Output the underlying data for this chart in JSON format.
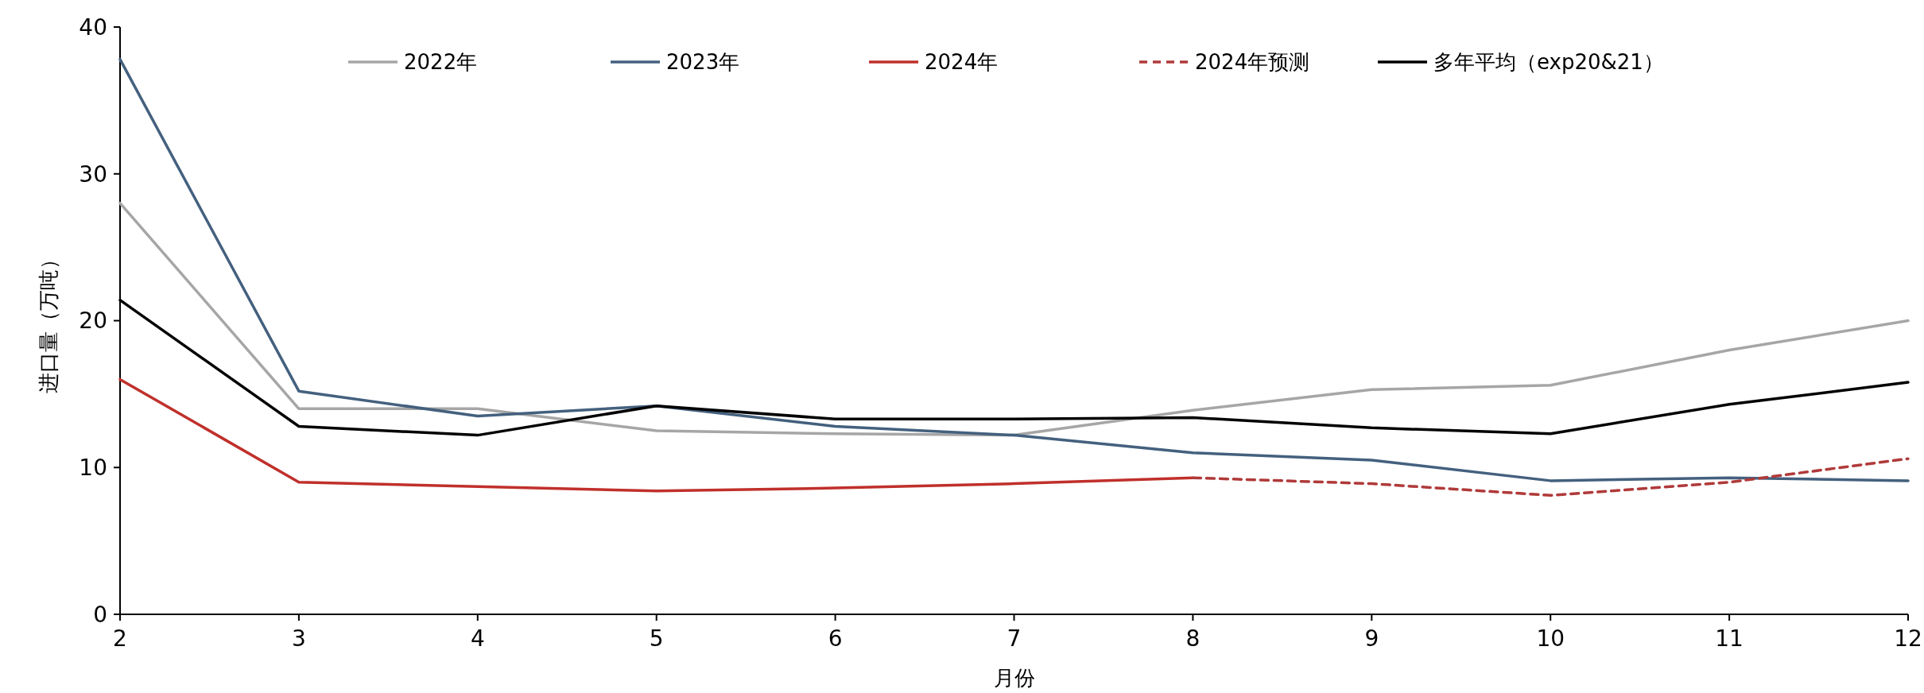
{
  "chart_data": {
    "type": "line",
    "xlabel": "月份",
    "ylabel": "进口量（万吨）",
    "x": [
      2,
      3,
      4,
      5,
      6,
      7,
      8,
      9,
      10,
      11,
      12
    ],
    "xlim": [
      2,
      12
    ],
    "xticks": [
      2,
      3,
      4,
      5,
      6,
      7,
      8,
      9,
      10,
      11,
      12
    ],
    "ylim": [
      0,
      40
    ],
    "yticks": [
      0,
      10,
      20,
      30,
      40
    ],
    "grid": false,
    "legend": "top",
    "marker": "none",
    "series": [
      {
        "name": "2022年",
        "color": "#a6a6a6",
        "line_style": "solid",
        "values": [
          28,
          14,
          14,
          12.5,
          12.3,
          12.2,
          13.9,
          15.3,
          15.6,
          18,
          20
        ]
      },
      {
        "name": "2023年",
        "color": "#44607e",
        "line_style": "solid",
        "values": [
          37.8,
          15.2,
          13.5,
          14.2,
          12.8,
          12.2,
          11,
          10.5,
          9.1,
          9.3,
          9.1
        ]
      },
      {
        "name": "2024年",
        "color": "#c0302b",
        "line_style": "solid",
        "values": [
          16,
          9,
          8.7,
          8.4,
          8.6,
          8.9,
          9.3,
          null,
          null,
          null,
          null
        ]
      },
      {
        "name": "2024年预测",
        "color": "#b03a3a",
        "line_style": "dashed",
        "values": [
          null,
          null,
          null,
          null,
          null,
          null,
          9.3,
          8.9,
          8.1,
          9,
          10.6
        ]
      },
      {
        "name": "多年平均（exp20&21）",
        "color": "#000000",
        "line_style": "solid",
        "values": [
          21.4,
          12.8,
          12.2,
          14.2,
          13.3,
          13.3,
          13.4,
          12.7,
          12.3,
          14.3,
          15.8
        ]
      }
    ]
  }
}
